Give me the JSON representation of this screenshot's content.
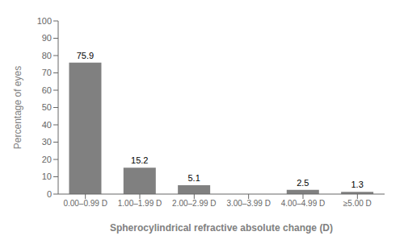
{
  "chart_data": {
    "type": "bar",
    "categories": [
      "0.00–0.99 D",
      "1.00–1.99 D",
      "2.00–2.99 D",
      "3.00–3.99 D",
      "4.00–4.99 D",
      "≥5.00 D"
    ],
    "values": [
      75.9,
      15.2,
      5.1,
      0,
      2.5,
      1.3
    ],
    "color": "#808080",
    "xlabel": "Spherocylindrical refractive absolute change (D)",
    "ylabel": "Percentage of eyes",
    "ylim": [
      0,
      100
    ],
    "yticks": [
      0,
      10,
      20,
      30,
      40,
      50,
      60,
      70,
      80,
      90,
      100
    ],
    "data_labels": true,
    "grid": false
  }
}
